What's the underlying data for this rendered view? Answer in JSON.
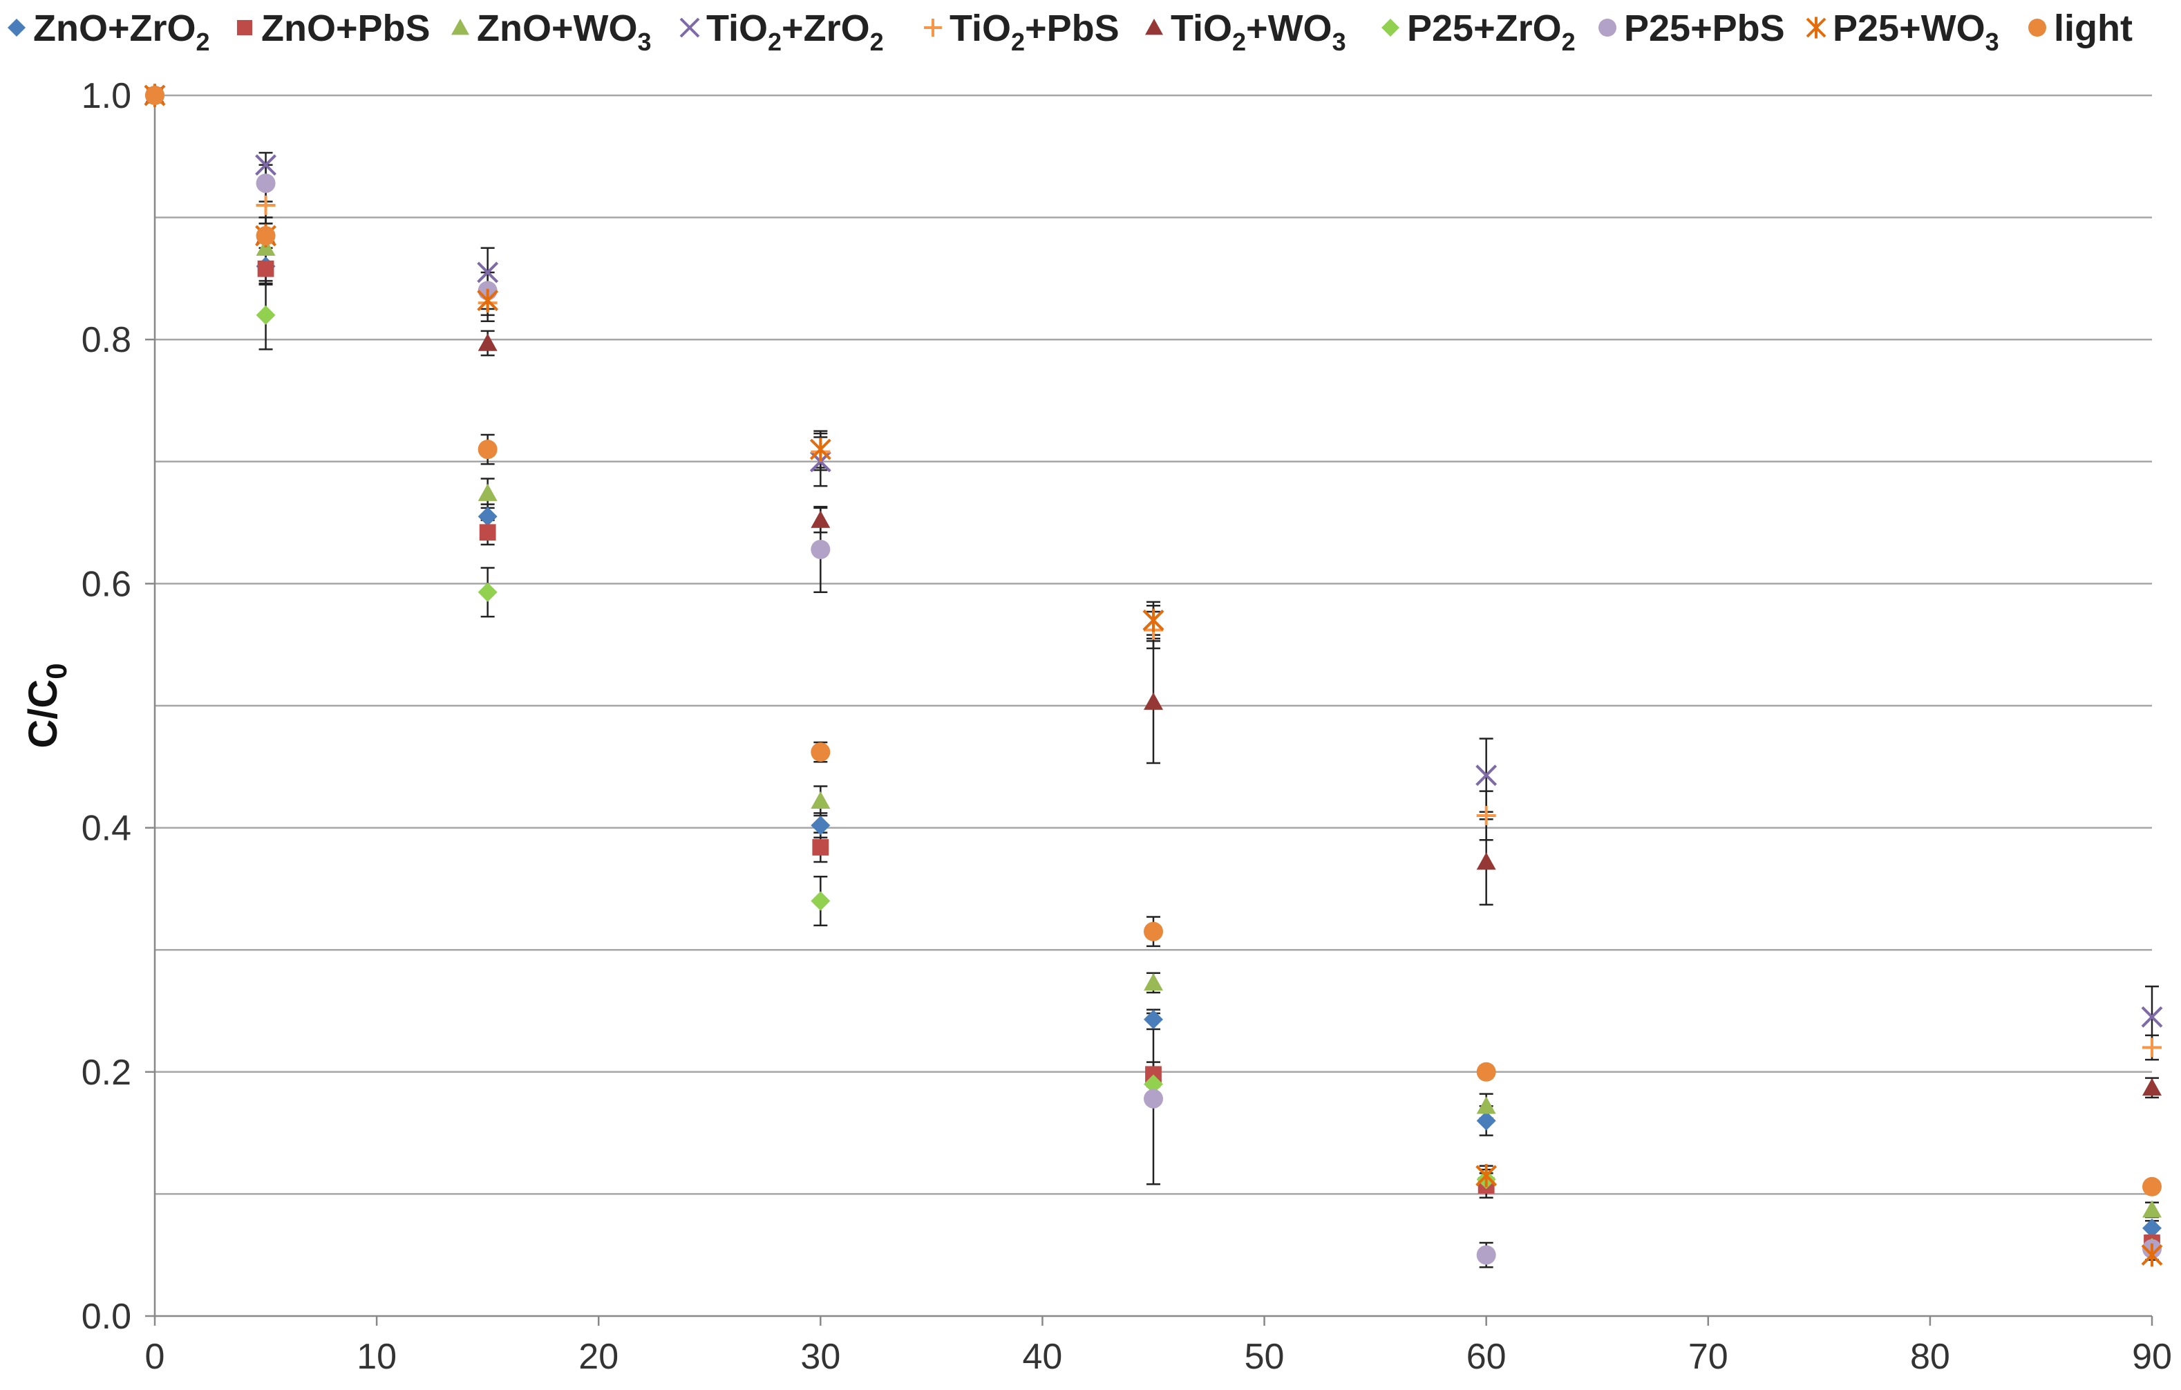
{
  "chart_data": {
    "type": "scatter",
    "title": "",
    "xlabel": "",
    "ylabel": {
      "main": "C/C",
      "sub": "0"
    },
    "xlim": [
      0,
      90
    ],
    "ylim": [
      0,
      1.0
    ],
    "xticks": [
      0,
      10,
      20,
      30,
      40,
      50,
      60,
      70,
      80,
      90
    ],
    "yticks": [
      0.0,
      0.2,
      0.4,
      0.6,
      0.8,
      1.0
    ],
    "ytick_labels": [
      "0.0",
      "0.2",
      "0.4",
      "0.6",
      "0.8",
      "1.0"
    ],
    "grid_y": [
      0.1,
      0.2,
      0.3,
      0.4,
      0.5,
      0.6,
      0.7,
      0.8,
      0.9,
      1.0
    ],
    "legend_position": "top",
    "x": [
      0,
      5,
      15,
      30,
      45,
      60,
      90
    ],
    "series": [
      {
        "name": "ZnO+ZrO2",
        "label": "ZnO+ZrO",
        "sub": "2",
        "label_tail": "",
        "marker": "diamond",
        "color": "#4A7EBB",
        "values": [
          1.0,
          0.86,
          0.655,
          0.402,
          0.243,
          0.16,
          0.072
        ],
        "errors": [
          0,
          0.015,
          0.01,
          0.01,
          0.008,
          0.012,
          0.006
        ]
      },
      {
        "name": "ZnO+PbS",
        "label": "ZnO+PbS",
        "sub": "",
        "label_tail": "",
        "marker": "square",
        "color": "#BE4B48",
        "values": [
          1.0,
          0.858,
          0.642,
          0.384,
          0.198,
          0.107,
          0.06
        ],
        "errors": [
          0,
          0.012,
          0.01,
          0.012,
          0.01,
          0.01,
          0.006
        ]
      },
      {
        "name": "ZnO+WO3",
        "label": "ZnO+WO",
        "sub": "3",
        "label_tail": "",
        "marker": "triangle",
        "color": "#98B954",
        "values": [
          1.0,
          0.875,
          0.674,
          0.422,
          0.273,
          0.172,
          0.087
        ],
        "errors": [
          0,
          0.015,
          0.012,
          0.012,
          0.008,
          0.01,
          0.006
        ]
      },
      {
        "name": "TiO2+ZrO2",
        "label": "TiO",
        "sub": "2",
        "label_tail": "+ZrO",
        "sub2": "2",
        "marker": "x",
        "color": "#7E6AA7",
        "values": [
          1.0,
          0.943,
          0.855,
          0.7,
          0.57,
          0.443,
          0.245
        ],
        "errors": [
          0,
          0.01,
          0.02,
          0.02,
          0.015,
          0.03,
          0.025
        ]
      },
      {
        "name": "TiO2+PbS",
        "label": "TiO",
        "sub": "2",
        "label_tail": "+PbS",
        "sub2": "",
        "marker": "plus",
        "color": "#F79646",
        "values": [
          1.0,
          0.91,
          0.83,
          0.708,
          0.562,
          0.41,
          0.22
        ],
        "errors": [
          0,
          0.015,
          0.015,
          0.015,
          0.015,
          0.02,
          0.01
        ]
      },
      {
        "name": "TiO2+WO3",
        "label": "TiO",
        "sub": "2",
        "label_tail": "+WO",
        "sub2": "3",
        "marker": "triangle",
        "color": "#953735",
        "values": [
          1.0,
          0.885,
          0.797,
          0.652,
          0.503,
          0.372,
          0.187
        ],
        "errors": [
          0,
          0.015,
          0.01,
          0.01,
          0.05,
          0.035,
          0.008
        ]
      },
      {
        "name": "P25+ZrO2",
        "label": "P25+ZrO",
        "sub": "2",
        "label_tail": "",
        "marker": "diamond",
        "color": "#92D050",
        "values": [
          1.0,
          0.82,
          0.593,
          0.34,
          0.19,
          0.112,
          0.056
        ],
        "errors": [
          0,
          0.028,
          0.02,
          0.02,
          0.008,
          0.008,
          0.005
        ]
      },
      {
        "name": "P25+PbS",
        "label": "P25+PbS",
        "sub": "",
        "label_tail": "",
        "marker": "circle",
        "color": "#B3A2C7",
        "values": [
          1.0,
          0.928,
          0.84,
          0.628,
          0.178,
          0.05,
          0.055
        ],
        "errors": [
          0,
          0.015,
          0.015,
          0.035,
          0.07,
          0.01,
          0.005
        ]
      },
      {
        "name": "P25+WO3",
        "label": "P25+WO",
        "sub": "3",
        "label_tail": "",
        "marker": "asterisk",
        "color": "#E46C0A",
        "values": [
          1.0,
          0.885,
          0.832,
          0.71,
          0.57,
          0.115,
          0.05
        ],
        "errors": [
          0,
          0.015,
          0.012,
          0.015,
          0.012,
          0.008,
          0.004
        ]
      },
      {
        "name": "light",
        "label": "light",
        "sub": "",
        "label_tail": "",
        "marker": "circle",
        "color": "#E9883A",
        "values": [
          1.0,
          0.885,
          0.71,
          0.462,
          0.315,
          0.2,
          0.106
        ],
        "errors": [
          0,
          0.01,
          0.012,
          0.008,
          0.012,
          0.005,
          0.004
        ]
      }
    ]
  }
}
